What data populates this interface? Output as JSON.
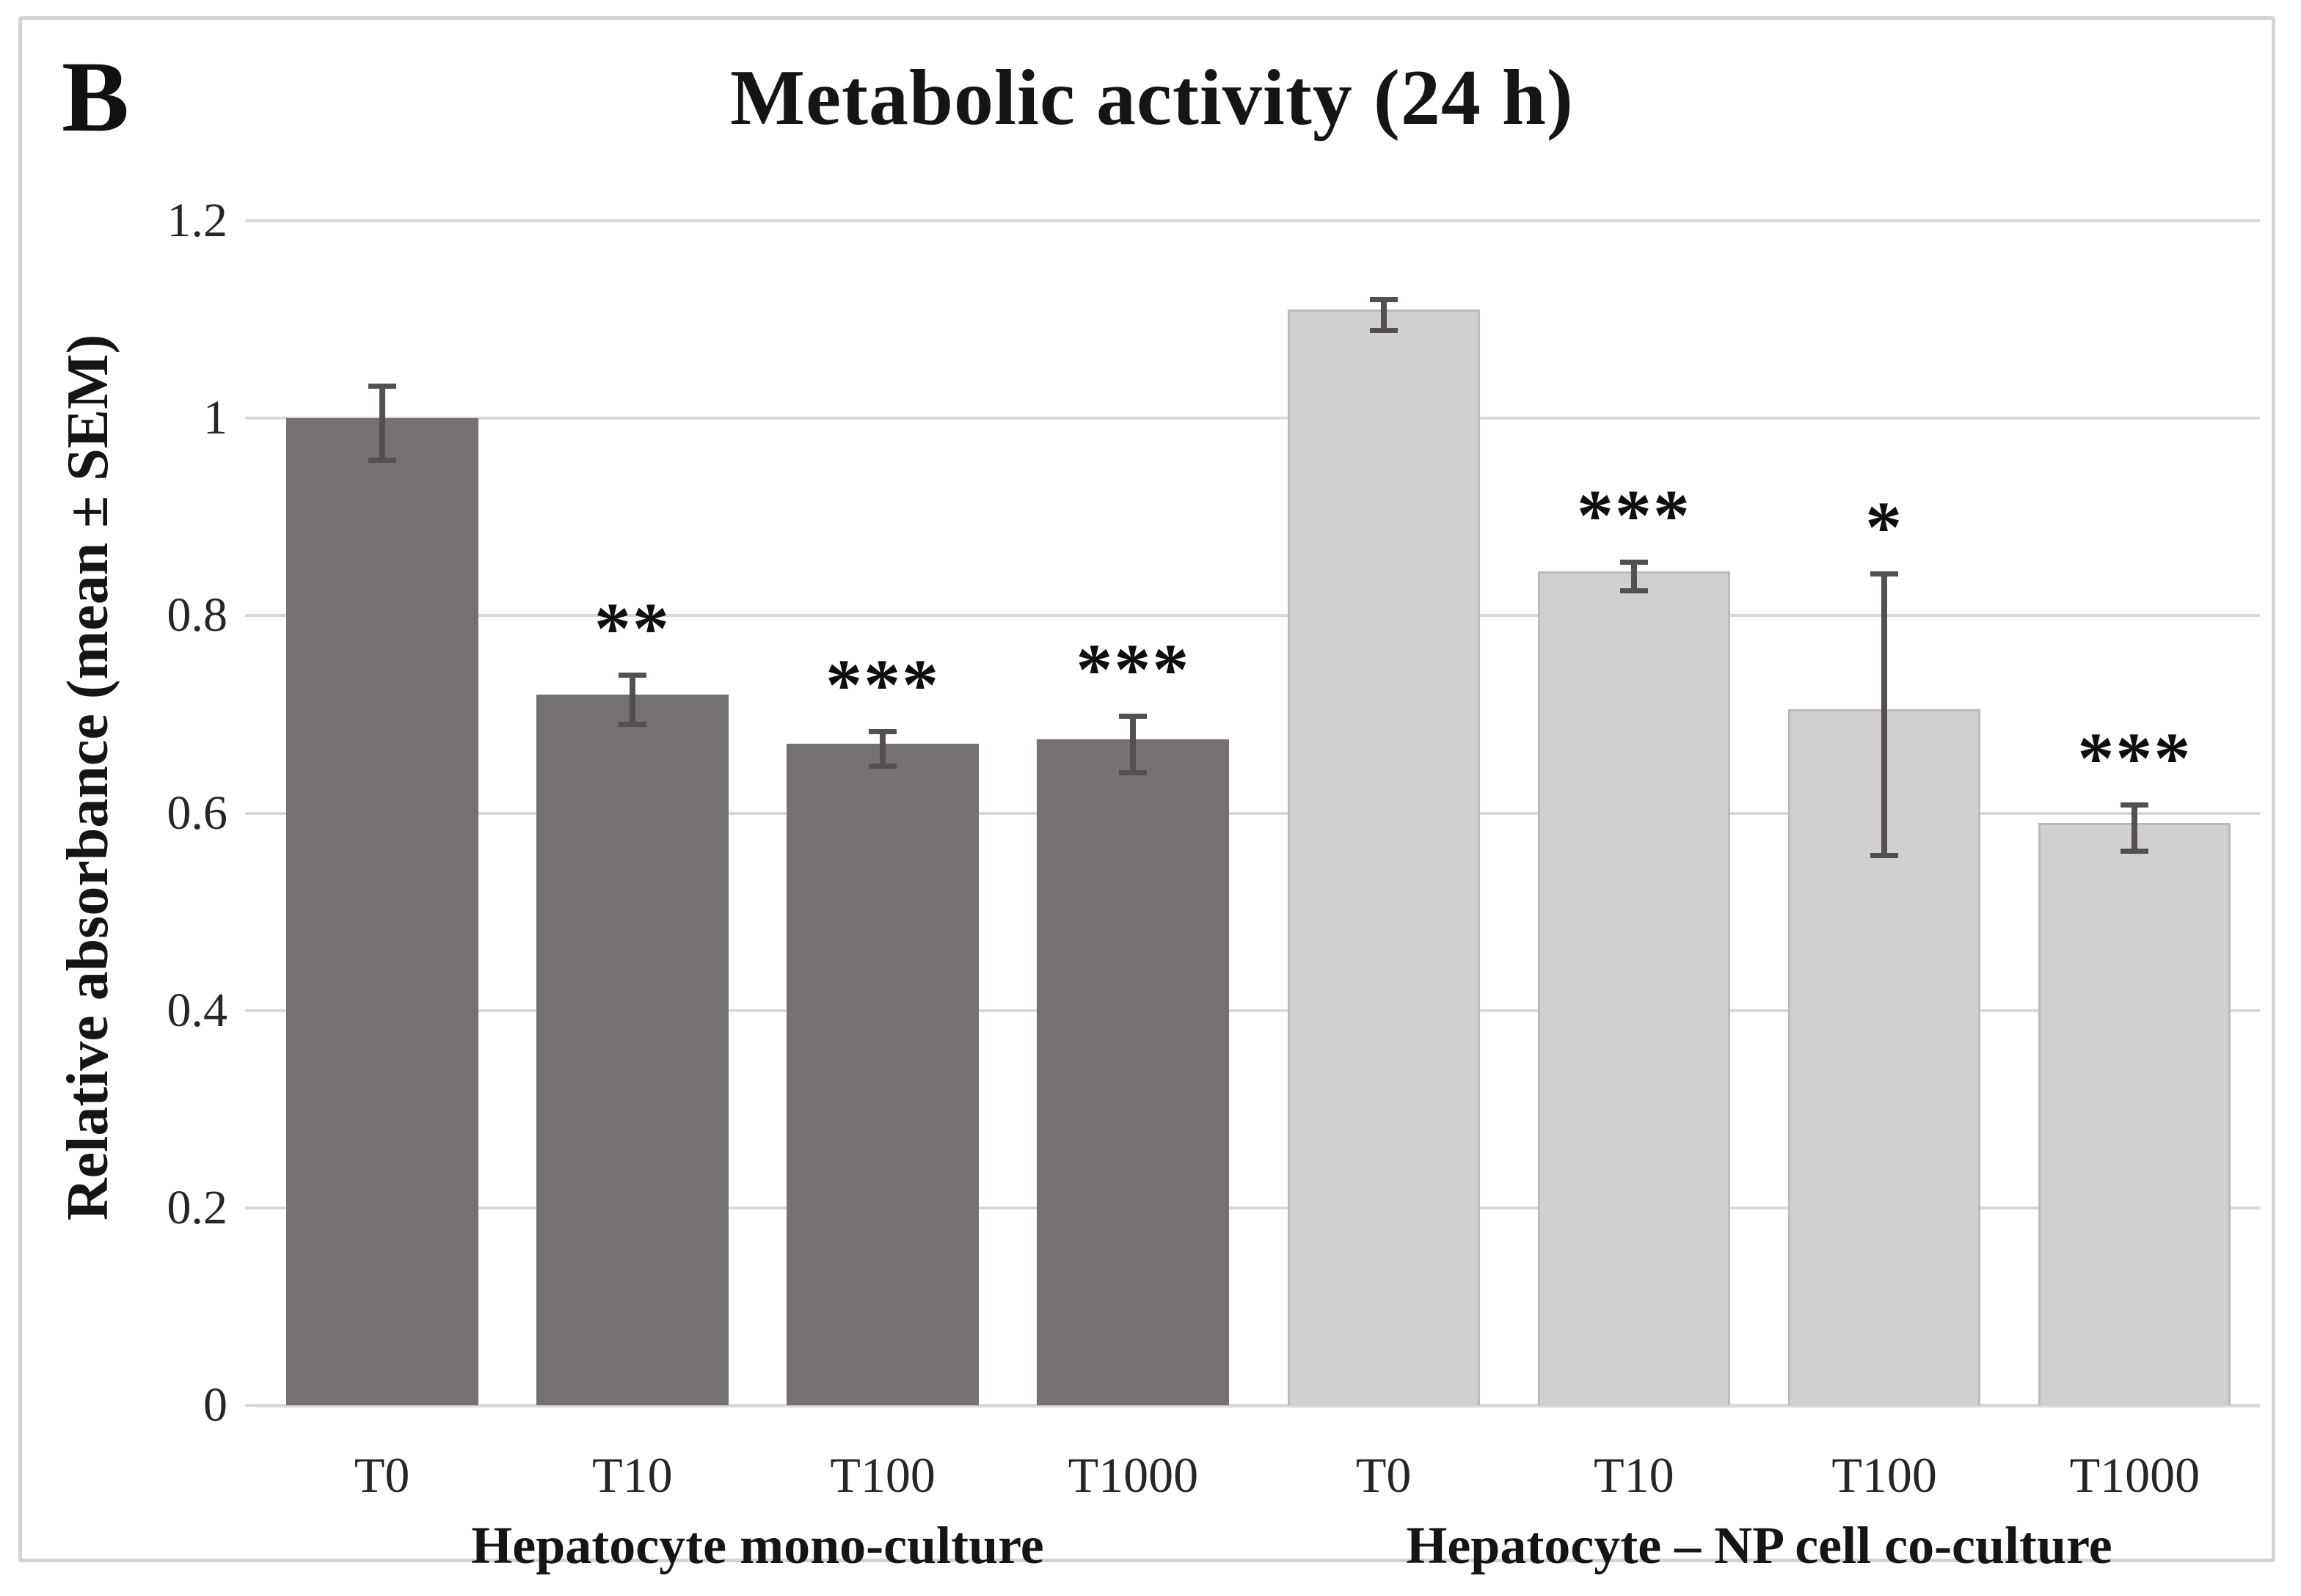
{
  "figure": {
    "panel_label": "B",
    "colors": {
      "dark_bar": "#767170",
      "light_bar": "#d2cfd0",
      "light_bar_border": "#bdbaba",
      "gridline": "#d9d9d9",
      "error_bar": "#544f50",
      "frame": "#d3d3d3",
      "text": "#1f1f1f"
    }
  },
  "chart_data": {
    "type": "bar",
    "title": "Metabolic activity (24 h)",
    "xlabel": "",
    "ylabel": "Relative absorbance (mean ± SEM)",
    "ylim": [
      0,
      1.2
    ],
    "grid": true,
    "legend": "none",
    "yticks": [
      {
        "label": "1.2",
        "value": 1.2
      },
      {
        "label": "1",
        "value": 1.0
      },
      {
        "label": "0.8",
        "value": 0.8
      },
      {
        "label": "0.6",
        "value": 0.6
      },
      {
        "label": "0.4",
        "value": 0.4
      },
      {
        "label": "0.2",
        "value": 0.2
      },
      {
        "label": "0",
        "value": 0.0
      }
    ],
    "groups": [
      {
        "label": "Hepatocyte mono-culture",
        "bar_color": "#767170",
        "bars": [
          {
            "category": "T0",
            "value": 1.0,
            "sem": 0.035,
            "stars": ""
          },
          {
            "category": "T10",
            "value": 0.72,
            "sem": 0.022,
            "stars": "**"
          },
          {
            "category": "T100",
            "value": 0.67,
            "sem": 0.015,
            "stars": "***"
          },
          {
            "category": "T1000",
            "value": 0.675,
            "sem": 0.026,
            "stars": "***"
          }
        ]
      },
      {
        "label": "Hepatocyte – NP cell co-culture",
        "bar_color": "#d2cfd0",
        "bars": [
          {
            "category": "T0",
            "value": 1.11,
            "sem": 0.013,
            "stars": ""
          },
          {
            "category": "T10",
            "value": 0.845,
            "sem": 0.012,
            "stars": "***"
          },
          {
            "category": "T100",
            "value": 0.705,
            "sem": 0.14,
            "stars": "*"
          },
          {
            "category": "T1000",
            "value": 0.59,
            "sem": 0.021,
            "stars": "***"
          }
        ]
      }
    ]
  }
}
